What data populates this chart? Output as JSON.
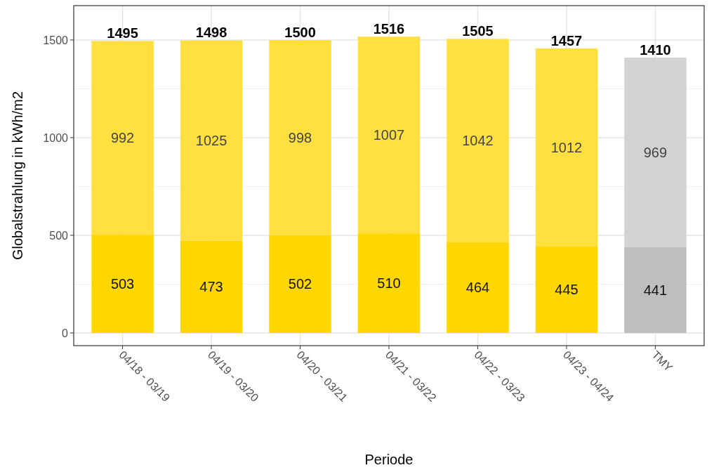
{
  "chart_data": {
    "type": "bar",
    "xlabel": "Periode",
    "ylabel": "Globalstrahlung in kWh/m2",
    "categories": [
      "04/18 - 03/19",
      "04/19 - 03/20",
      "04/20 - 03/21",
      "04/21 - 03/22",
      "04/22 - 03/23",
      "04/23 - 04/24",
      "TMY"
    ],
    "stacked": true,
    "data_labels": true,
    "grid": true,
    "series": [
      {
        "colors": [
          "#ffd700",
          "#ffd700",
          "#ffd700",
          "#ffd700",
          "#ffd700",
          "#ffd700",
          "#bebebe"
        ],
        "values": [
          503,
          473,
          502,
          510,
          464,
          445,
          441
        ]
      },
      {
        "colors": [
          "#ffe040",
          "#ffe040",
          "#ffe040",
          "#ffe040",
          "#ffe040",
          "#ffe040",
          "#d3d3d3"
        ],
        "values": [
          992,
          1025,
          998,
          1007,
          1042,
          1012,
          969
        ]
      }
    ],
    "totals": [
      "1495",
      "1498",
      "1500",
      "1516",
      "1505",
      "1457",
      "1410"
    ],
    "ylim": [
      -65,
      1676
    ],
    "yticks": [
      0,
      500,
      1000,
      1500
    ]
  }
}
